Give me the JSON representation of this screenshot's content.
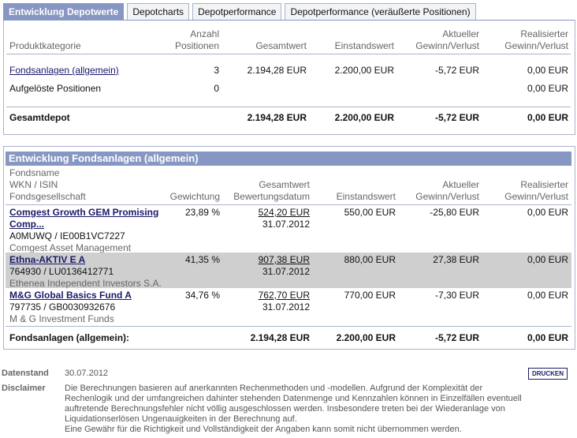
{
  "tabs": [
    {
      "label": "Entwicklung Depotwerte"
    },
    {
      "label": "Depotcharts"
    },
    {
      "label": "Depotperformance"
    },
    {
      "label": "Depotperformance (veräußerte Positionen)"
    }
  ],
  "overview": {
    "headers": {
      "category": "Produktkategorie",
      "count_l1": "Anzahl",
      "count_l2": "Positionen",
      "total": "Gesamtwert",
      "cost": "Einstandswert",
      "gain_l1": "Aktueller",
      "gain_l2": "Gewinn/Verlust",
      "realized_l1": "Realisierter",
      "realized_l2": "Gewinn/Verlust"
    },
    "rows": [
      {
        "category": "Fondsanlagen (allgemein)",
        "count": "3",
        "total": "2.194,28 EUR",
        "cost": "2.200,00 EUR",
        "gain": "-5,72 EUR",
        "realized": "0,00 EUR"
      },
      {
        "category": "Aufgelöste Positionen",
        "count": "0",
        "total": "",
        "cost": "",
        "gain": "",
        "realized": "0,00 EUR"
      }
    ],
    "total_row": {
      "label": "Gesamtdepot",
      "total": "2.194,28 EUR",
      "cost": "2.200,00 EUR",
      "gain": "-5,72 EUR",
      "realized": "0,00 EUR"
    }
  },
  "funds": {
    "title": "Entwicklung Fondsanlagen (allgemein)",
    "headers": {
      "name_l1": "Fondsname",
      "name_l2": "WKN / ISIN",
      "name_l3": "Fondsgesellschaft",
      "weight": "Gewichtung",
      "total_l1": "Gesamtwert",
      "total_l2": "Bewertungsdatum",
      "cost": "Einstandswert",
      "gain_l1": "Aktueller",
      "gain_l2": "Gewinn/Verlust",
      "realized_l1": "Realisierter",
      "realized_l2": "Gewinn/Verlust"
    },
    "rows": [
      {
        "name_l1": "Comgest Growth GEM Promising",
        "name_l2": "Comp...",
        "ids": "A0MUWQ /  IE00B1VC7227",
        "company": "Comgest Asset Management",
        "weight": "23,89 %",
        "total": "524,20 EUR",
        "date": "31.07.2012",
        "cost": "550,00 EUR",
        "gain": "-25,80 EUR",
        "realized": "0,00 EUR"
      },
      {
        "name_l1": "Ethna-AKTIV E A",
        "name_l2": "",
        "ids": "764930 /  LU0136412771",
        "company": "Ethenea Independent Investors S.A.",
        "weight": "41,35 %",
        "total": "907,38 EUR",
        "date": "31.07.2012",
        "cost": "880,00 EUR",
        "gain": "27,38 EUR",
        "realized": "0,00 EUR"
      },
      {
        "name_l1": "M&G Global Basics Fund A",
        "name_l2": "",
        "ids": "797735 /  GB0030932676",
        "company": "M & G Investment Funds",
        "weight": "34,76 %",
        "total": "762,70 EUR",
        "date": "31.07.2012",
        "cost": "770,00 EUR",
        "gain": "-7,30 EUR",
        "realized": "0,00 EUR"
      }
    ],
    "total_row": {
      "label": "Fondsanlagen (allgemein):",
      "total": "2.194,28 EUR",
      "cost": "2.200,00 EUR",
      "gain": "-5,72 EUR",
      "realized": "0,00 EUR"
    }
  },
  "footer": {
    "date_label": "Datenstand",
    "date_value": "30.07.2012",
    "print_label": "DRUCKEN",
    "disclaimer_label": "Disclaimer",
    "disclaimer_lines": [
      "Die Berechnungen basieren auf anerkannten Rechenmethoden und -modellen. Aufgrund der Komplexität der",
      "Rechenlogik und der umfangreichen dahinter stehenden Datenmenge und Kennzahlen können in Einzelfällen eventuell",
      "auftretende Berechnungsfehler nicht völlig ausgeschlossen werden. Insbesondere treten bei der Wiederanlage von",
      "Liquidationserlösen Ungenauigkeiten in der Berechnung auf.",
      "Eine Gewähr für die Richtigkeit und Vollständigkeit der Angaben kann somit nicht übernommen werden."
    ]
  },
  "colors": {
    "accent": "#8797c3",
    "border": "#a9b3c9",
    "highlight_row": "#cfcfcf"
  }
}
